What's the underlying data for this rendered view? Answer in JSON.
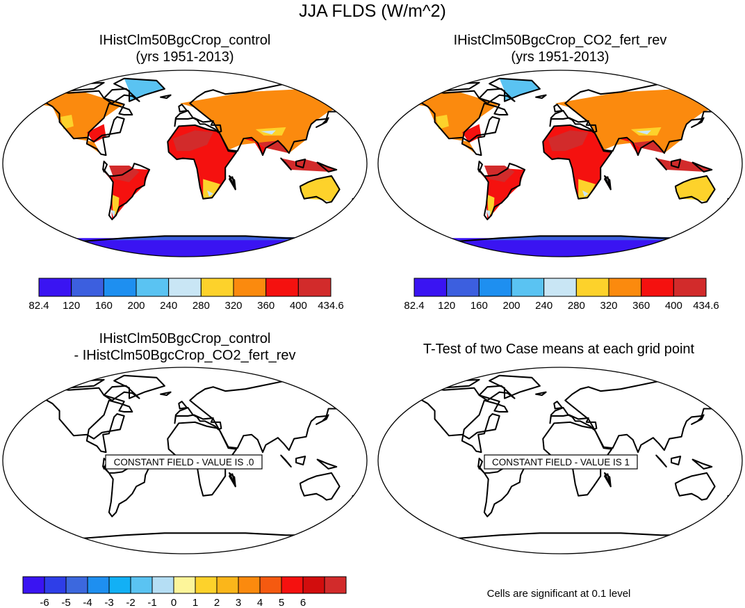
{
  "figure": {
    "title": "JJA FLDS (W/m^2)"
  },
  "panels": [
    {
      "title_line1": "IHistClm50BgcCrop_control",
      "title_line2": "(yrs 1951-2013)",
      "kind": "field"
    },
    {
      "title_line1": "IHistClm50BgcCrop_CO2_fert_rev",
      "title_line2": "(yrs 1951-2013)",
      "kind": "field"
    },
    {
      "title_line1": "IHistClm50BgcCrop_control",
      "title_line2": "- IHistClm50BgcCrop_CO2_fert_rev",
      "kind": "difference",
      "message": "CONSTANT FIELD - VALUE IS .0"
    },
    {
      "title_line1": "T-Test of two Case means at each grid point",
      "title_line2": "",
      "kind": "ttest",
      "message": "CONSTANT FIELD - VALUE IS 1"
    }
  ],
  "colorbars": {
    "field": {
      "labels": [
        "82.4",
        "120",
        "160",
        "200",
        "240",
        "280",
        "320",
        "360",
        "400",
        "434.6"
      ],
      "colors": [
        "#3a14f2",
        "#3c5fdf",
        "#1e8ff0",
        "#5ac3f2",
        "#c9e6f5",
        "#fdd22b",
        "#fb8a0e",
        "#f5110f",
        "#d22b2b"
      ]
    },
    "difference": {
      "labels": [
        "-6",
        "-5",
        "-4",
        "-3",
        "-2",
        "-1",
        "0",
        "1",
        "2",
        "3",
        "4",
        "5",
        "6"
      ],
      "colors": [
        "#3a14f2",
        "#2e3ee8",
        "#3c68de",
        "#1e8ff0",
        "#12b0f5",
        "#5ac3f2",
        "#b5def4",
        "#fdf59a",
        "#fdd22b",
        "#fbb61a",
        "#fb8a0e",
        "#f55a10",
        "#f5110f",
        "#d20d0d",
        "#d22b2b"
      ]
    }
  },
  "footnote": "Cells are significant at 0.1 level"
}
